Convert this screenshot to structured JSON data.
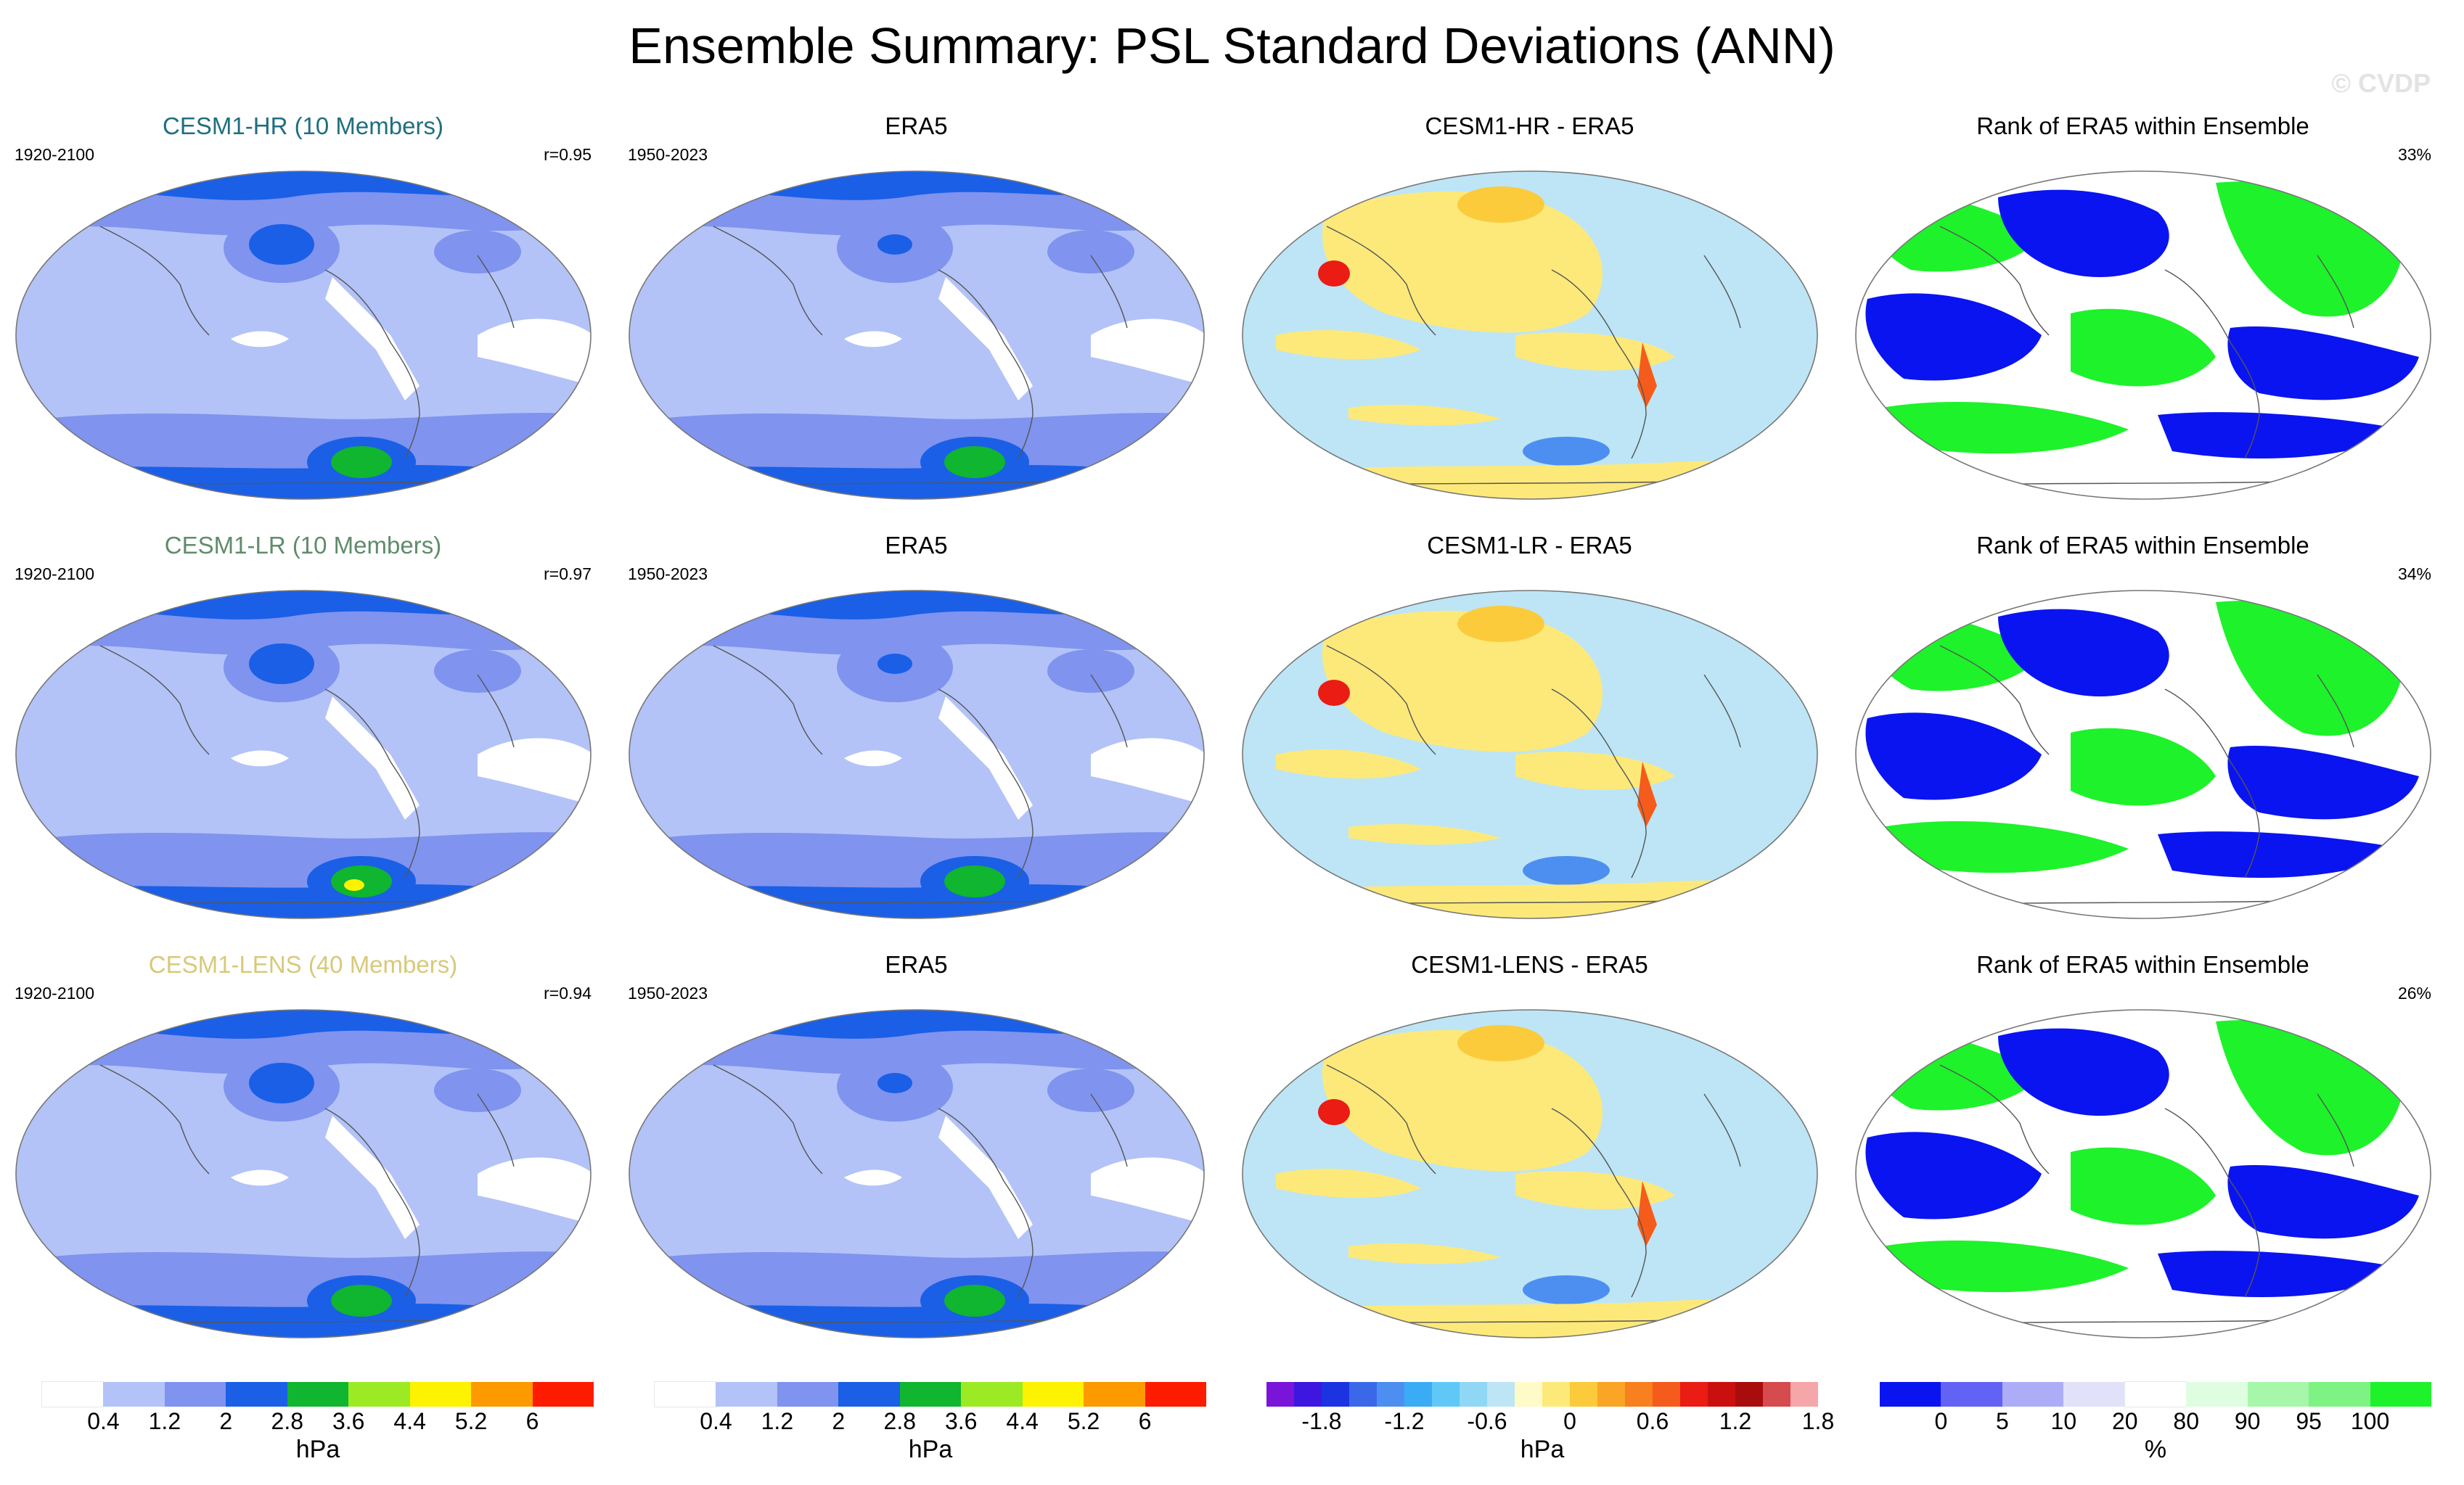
{
  "title": "Ensemble Summary: PSL Standard Deviations (ANN)",
  "watermark": "© CVDP",
  "rows": [
    {
      "model": {
        "title": "CESM1-HR (10 Members)",
        "title_color": "#1f6f7f",
        "period": "1920-2100",
        "stat": "r=0.95"
      },
      "obs": {
        "title": "ERA5",
        "period": "1950-2023"
      },
      "diff": {
        "title": "CESM1-HR - ERA5"
      },
      "rank": {
        "title": "Rank of ERA5 within Ensemble",
        "stat": "33%"
      }
    },
    {
      "model": {
        "title": "CESM1-LR (10 Members)",
        "title_color": "#5f8c6a",
        "period": "1920-2100",
        "stat": "r=0.97"
      },
      "obs": {
        "title": "ERA5",
        "period": "1950-2023"
      },
      "diff": {
        "title": "CESM1-LR - ERA5"
      },
      "rank": {
        "title": "Rank of ERA5 within Ensemble",
        "stat": "34%"
      }
    },
    {
      "model": {
        "title": "CESM1-LENS (40 Members)",
        "title_color": "#d8c97a",
        "period": "1920-2100",
        "stat": "r=0.94"
      },
      "obs": {
        "title": "ERA5",
        "period": "1950-2023"
      },
      "diff": {
        "title": "CESM1-LENS - ERA5"
      },
      "rank": {
        "title": "Rank of ERA5 within Ensemble",
        "stat": "26%"
      }
    }
  ],
  "chart_data": [
    {
      "type": "heatmap",
      "name": "psl-stddev-colorbar",
      "unit": "hPa",
      "tick_labels": [
        "0.4",
        "1.2",
        "2",
        "2.8",
        "3.6",
        "4.4",
        "5.2",
        "6"
      ],
      "levels": [
        0.4,
        0.8,
        1.2,
        1.6,
        2.0,
        2.4,
        2.8,
        3.2,
        3.6
      ],
      "colors": [
        "#ffffff",
        "#b3c3f7",
        "#7f93ef",
        "#1a5fe6",
        "#10b530",
        "#9cea24",
        "#fdf200",
        "#fc9a00",
        "#fd1c00"
      ]
    },
    {
      "type": "heatmap",
      "name": "psl-diff-colorbar",
      "unit": "hPa",
      "tick_labels": [
        "-1.8",
        "-1.2",
        "-0.6",
        "0",
        "0.6",
        "1.2",
        "1.8"
      ],
      "colors": [
        "#7a14d9",
        "#3d16e0",
        "#1c33e2",
        "#3a68e8",
        "#4d8ff0",
        "#3aabf5",
        "#5fc8f7",
        "#90d7f5",
        "#bde5f5",
        "#fffbc8",
        "#fde97a",
        "#fbcb3b",
        "#faa526",
        "#f9801f",
        "#f55b1b",
        "#ea1c14",
        "#c9100f",
        "#a90c0c",
        "#d54b4e",
        "#f5a6a8"
      ]
    },
    {
      "type": "heatmap",
      "name": "rank-colorbar",
      "unit": "%",
      "tick_labels": [
        "0",
        "5",
        "10",
        "20",
        "80",
        "90",
        "95",
        "100"
      ],
      "colors": [
        "#0a14f0",
        "#6262f5",
        "#adadf7",
        "#e1e1fa",
        "#ffffff",
        "#dffde0",
        "#a6f7aa",
        "#7ef283",
        "#1ef22a"
      ]
    }
  ],
  "colors": {
    "ocean_low": "#b3c3f7",
    "mid": "#7f93ef",
    "high": "#1a5fe6",
    "very_high": "#10b530",
    "peak": "#9cea24",
    "rank_low": "#0a14f0",
    "rank_high": "#1ef22a",
    "diff_pos": "#fde97a",
    "diff_neg": "#bde5f5"
  }
}
